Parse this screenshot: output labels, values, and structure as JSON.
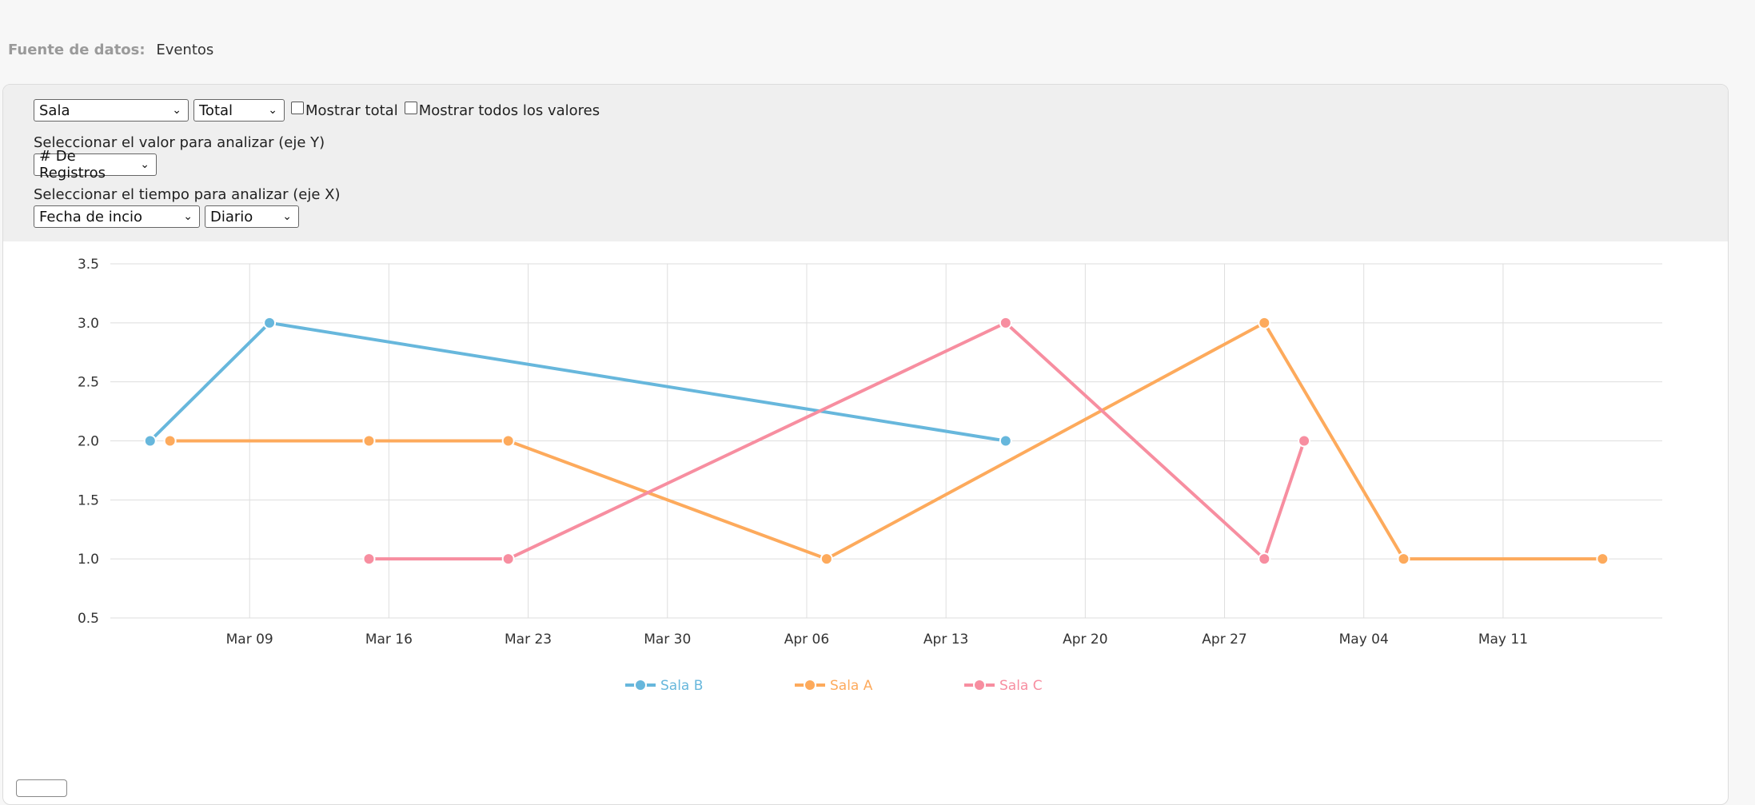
{
  "source": {
    "label": "Fuente de datos:",
    "value": "Eventos"
  },
  "controls": {
    "group_select": "Sala",
    "aggregate_select": "Total",
    "show_total_label": "Mostrar total",
    "show_all_label": "Mostrar todos los valores",
    "y_prompt": "Seleccionar el valor para analizar (eje Y)",
    "y_select": "# De Registros",
    "x_prompt": "Seleccionar el tiempo para analizar (eje X)",
    "x_field_select": "Fecha de incio",
    "x_interval_select": "Diario"
  },
  "chart_data": {
    "type": "line",
    "title": "",
    "xlabel": "",
    "ylabel": "",
    "x_range": [
      "2025-03-02",
      "2025-05-19"
    ],
    "ylim": [
      0.5,
      3.5
    ],
    "y_ticks": [
      0.5,
      1.0,
      1.5,
      2.0,
      2.5,
      3.0,
      3.5
    ],
    "x_ticks": [
      {
        "date": "2025-03-09",
        "label": "Mar 09"
      },
      {
        "date": "2025-03-16",
        "label": "Mar 16"
      },
      {
        "date": "2025-03-23",
        "label": "Mar 23"
      },
      {
        "date": "2025-03-30",
        "label": "Mar 30"
      },
      {
        "date": "2025-04-06",
        "label": "Apr 06"
      },
      {
        "date": "2025-04-13",
        "label": "Apr 13"
      },
      {
        "date": "2025-04-20",
        "label": "Apr 20"
      },
      {
        "date": "2025-04-27",
        "label": "Apr 27"
      },
      {
        "date": "2025-05-04",
        "label": "May 04"
      },
      {
        "date": "2025-05-11",
        "label": "May 11"
      }
    ],
    "grid": true,
    "legend": "bottom-center",
    "series": [
      {
        "name": "Sala B",
        "color": "#67b7dc",
        "points": [
          {
            "x": "2025-03-04",
            "y": 2
          },
          {
            "x": "2025-03-10",
            "y": 3
          },
          {
            "x": "2025-04-16",
            "y": 2
          }
        ]
      },
      {
        "name": "Sala A",
        "color": "#fdaa5c",
        "points": [
          {
            "x": "2025-03-05",
            "y": 2
          },
          {
            "x": "2025-03-15",
            "y": 2
          },
          {
            "x": "2025-03-22",
            "y": 2
          },
          {
            "x": "2025-04-07",
            "y": 1
          },
          {
            "x": "2025-04-29",
            "y": 3
          },
          {
            "x": "2025-05-06",
            "y": 1
          },
          {
            "x": "2025-05-16",
            "y": 1
          }
        ]
      },
      {
        "name": "Sala C",
        "color": "#f78ea0",
        "points": [
          {
            "x": "2025-03-15",
            "y": 1
          },
          {
            "x": "2025-03-22",
            "y": 1
          },
          {
            "x": "2025-04-16",
            "y": 3
          },
          {
            "x": "2025-04-29",
            "y": 1
          },
          {
            "x": "2025-05-01",
            "y": 2
          }
        ]
      }
    ]
  }
}
